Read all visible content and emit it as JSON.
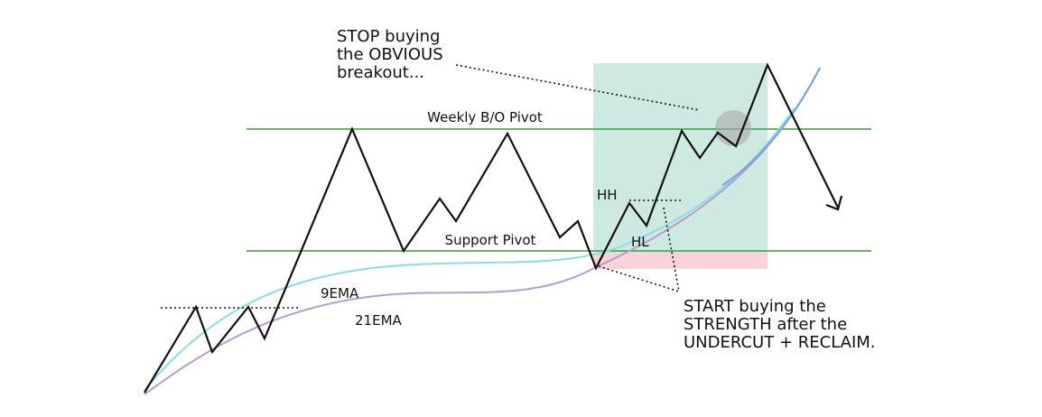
{
  "annotations": {
    "stop": [
      "STOP buying",
      "the OBVIOUS",
      "breakout..."
    ],
    "weekly_pivot": "Weekly B/O Pivot",
    "support_pivot": "Support Pivot",
    "hh": "HH",
    "hl": "HL",
    "ema9": "9EMA",
    "ema21": "21EMA",
    "start": [
      "START buying the",
      "STRENGTH after the",
      "UNDERCUT + RECLAIM."
    ]
  }
}
